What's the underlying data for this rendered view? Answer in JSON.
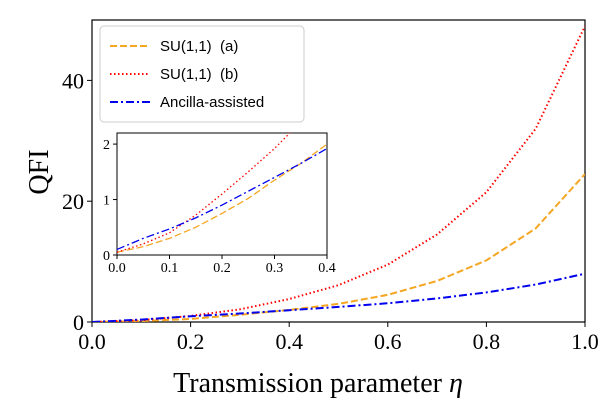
{
  "chart_data": [
    {
      "type": "line",
      "title": "",
      "xlabel": "Transmission parameter",
      "xlabel_symbol": "η",
      "ylabel": "QFI",
      "xlim": [
        0.0,
        1.0
      ],
      "ylim": [
        0,
        50
      ],
      "xticks": [
        "0.0",
        "0.2",
        "0.4",
        "0.6",
        "0.8",
        "1.0"
      ],
      "yticks": [
        "0",
        "20",
        "40"
      ],
      "grid": false,
      "legend_position": "top-left",
      "x": [
        0.0,
        0.1,
        0.2,
        0.3,
        0.4,
        0.5,
        0.6,
        0.7,
        0.8,
        0.9,
        1.0
      ],
      "series": [
        {
          "name": "SU(1,1)  (a)",
          "color": "#f5a623",
          "style": "dashed",
          "values": [
            0.0,
            0.15,
            0.5,
            1.2,
            2.0,
            3.0,
            4.5,
            6.8,
            10.2,
            15.5,
            24.5
          ]
        },
        {
          "name": "SU(1,1)  (b)",
          "color": "#ff0000",
          "style": "dotted",
          "values": [
            0.0,
            0.3,
            1.0,
            2.1,
            3.8,
            6.1,
            9.5,
            14.5,
            21.5,
            32.0,
            49.0
          ]
        },
        {
          "name": "Ancilla-assisted",
          "color": "#0000ee",
          "style": "dashdot",
          "values": [
            0.0,
            0.4,
            0.95,
            1.4,
            1.95,
            2.5,
            3.1,
            3.9,
            4.9,
            6.2,
            8.0
          ]
        }
      ]
    },
    {
      "type": "line",
      "title": "",
      "inset": true,
      "xlim": [
        0.0,
        0.4
      ],
      "ylim": [
        0,
        2.2
      ],
      "xticks": [
        "0.0",
        "0.1",
        "0.2",
        "0.3",
        "0.4"
      ],
      "yticks": [
        "0",
        "1",
        "2"
      ],
      "grid": false,
      "x": [
        0.0,
        0.05,
        0.1,
        0.15,
        0.2,
        0.25,
        0.3,
        0.35,
        0.4
      ],
      "series": [
        {
          "color": "#f5a623",
          "style": "dashed",
          "values": [
            0.05,
            0.15,
            0.3,
            0.5,
            0.75,
            1.02,
            1.35,
            1.65,
            2.0
          ]
        },
        {
          "color": "#ff0000",
          "style": "dotted",
          "values": [
            0.05,
            0.2,
            0.4,
            0.72,
            1.1,
            1.5,
            1.92,
            2.4,
            2.9
          ]
        },
        {
          "color": "#0000ee",
          "style": "dashdot",
          "values": [
            0.1,
            0.3,
            0.47,
            0.67,
            0.9,
            1.15,
            1.4,
            1.65,
            1.92
          ]
        }
      ]
    }
  ]
}
